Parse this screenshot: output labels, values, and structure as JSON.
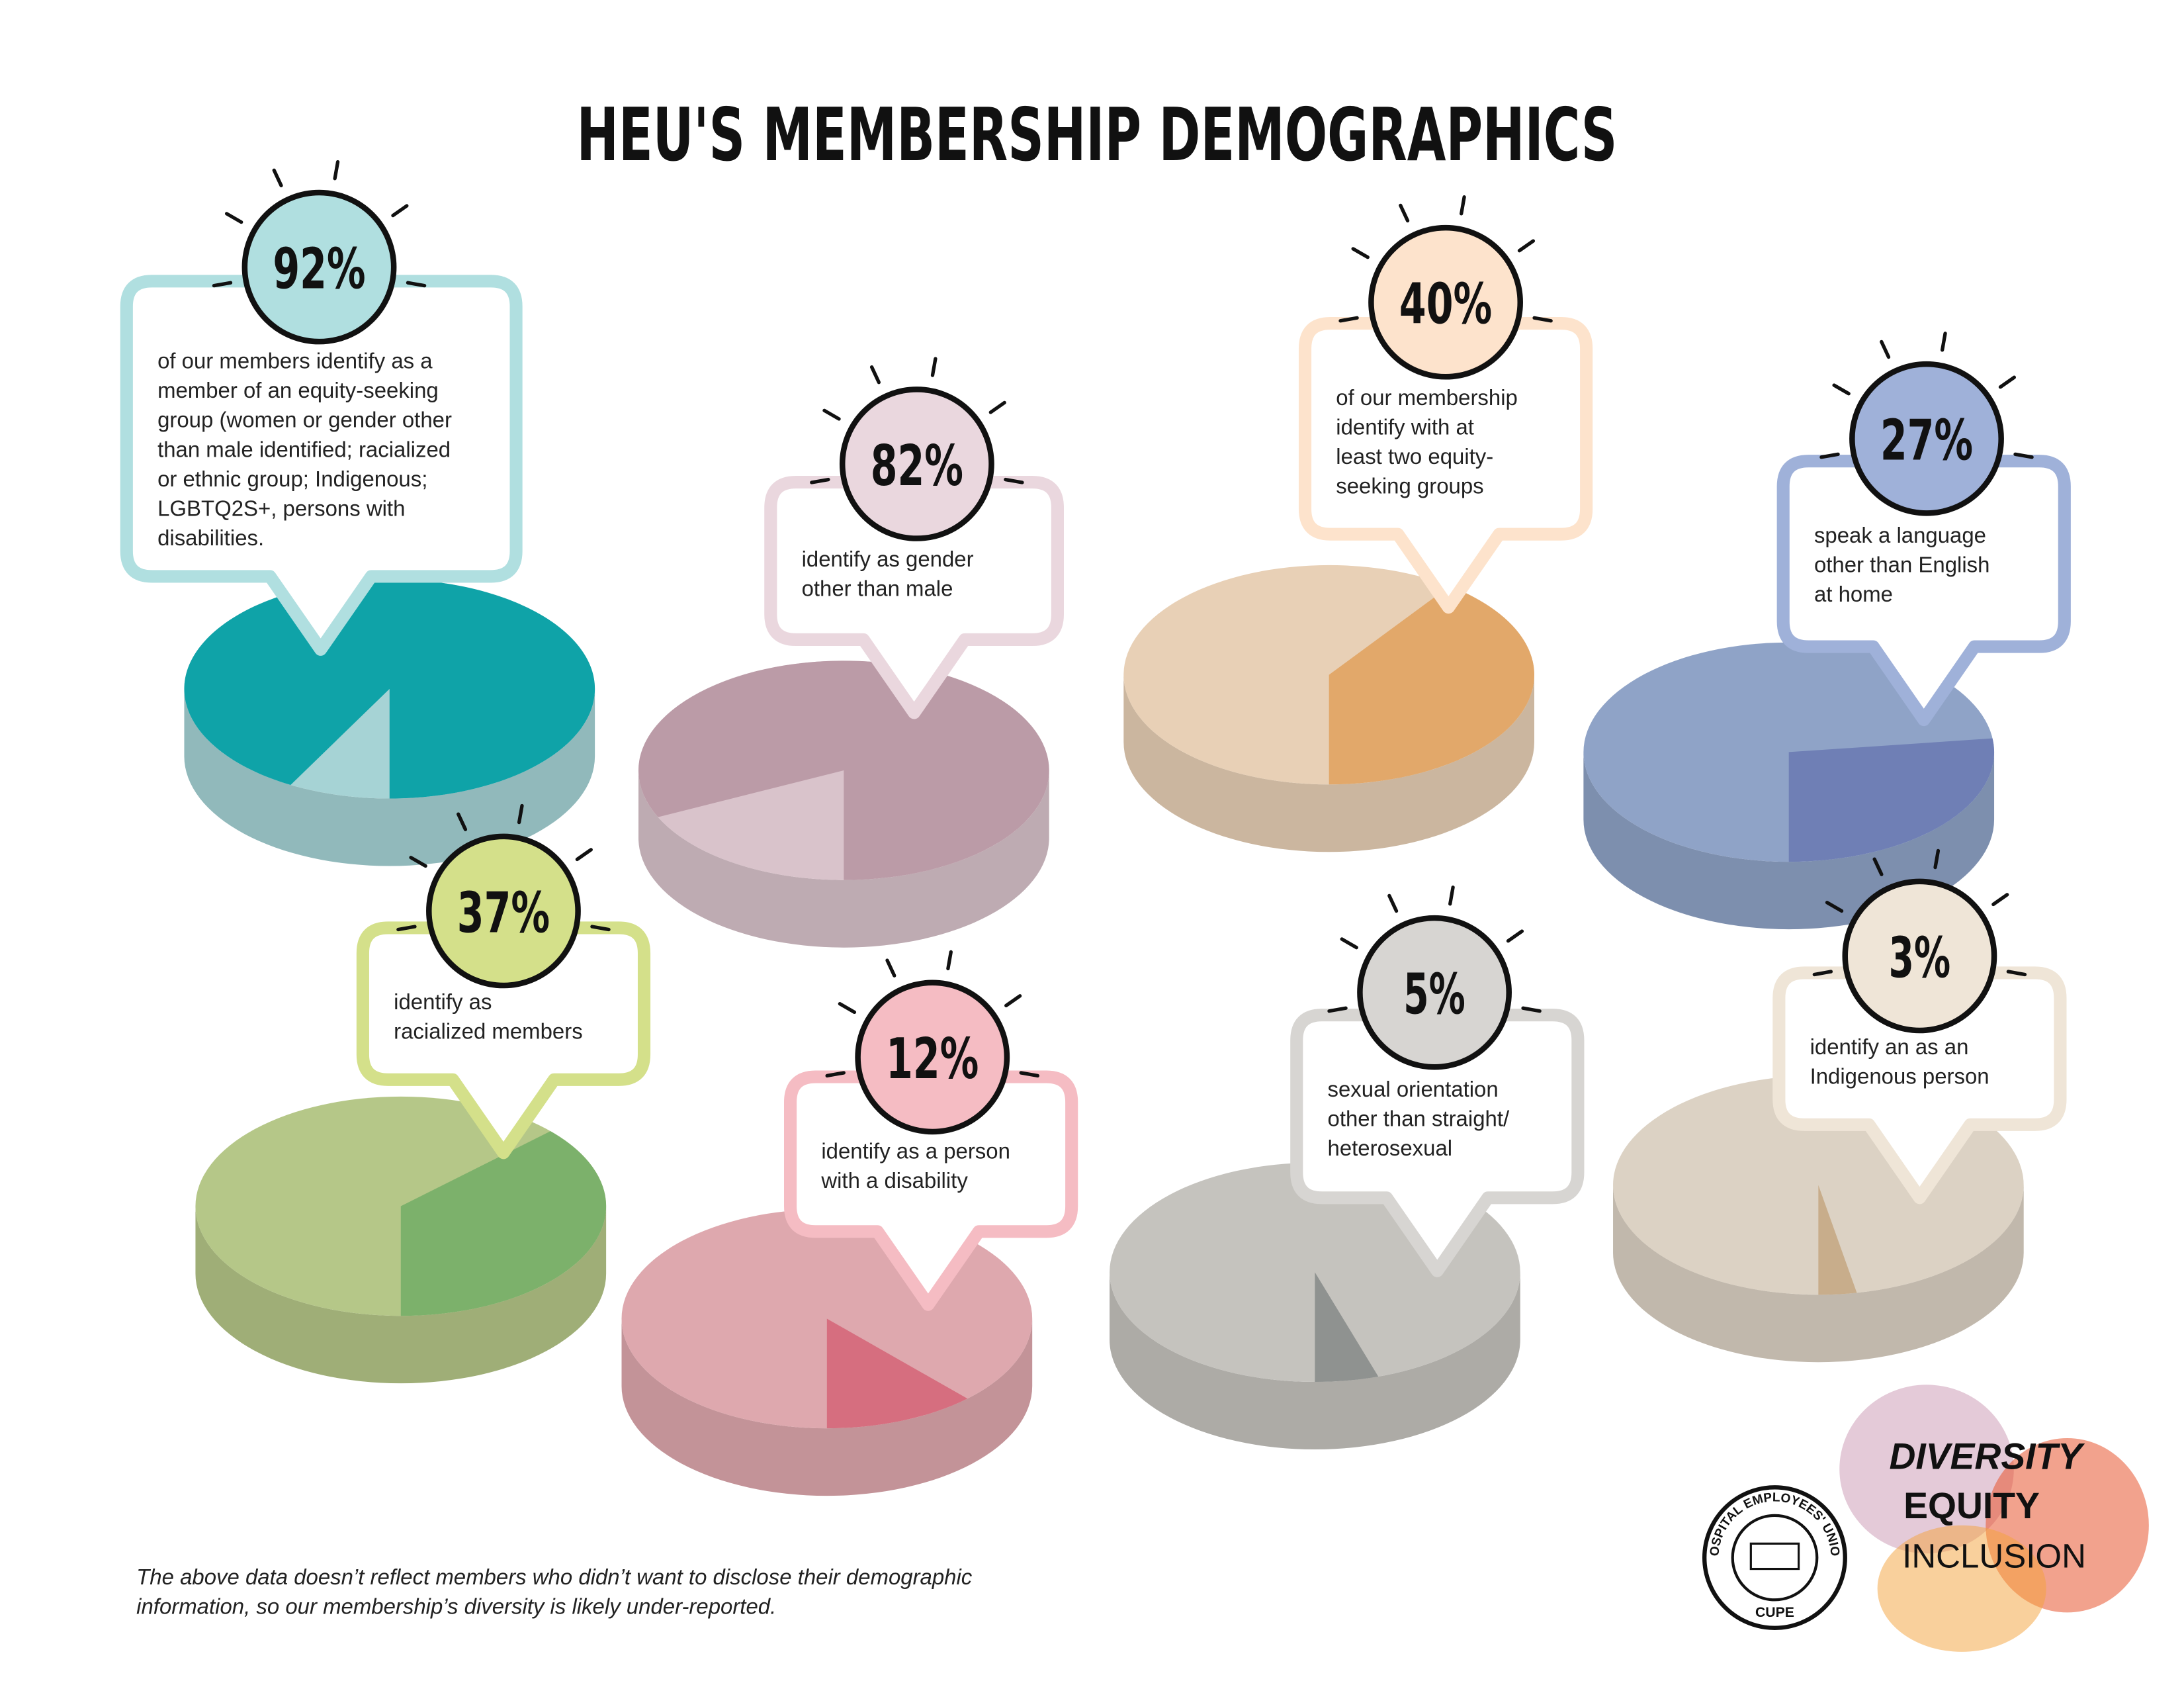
{
  "title": "HEU'S MEMBERSHIP DEMOGRAPHICS",
  "chart_data": [
    {
      "type": "pie",
      "values": [
        92
      ],
      "value_labels": [
        "92%"
      ],
      "text": [
        "of our members identify as a",
        "member of an equity-seeking",
        "group (women or gender other",
        "than male identified; racialized",
        "or ethnic group; Indigenous;",
        "LGBTQ2S+, persons with",
        "disabilities."
      ],
      "color": "#0fa3a8",
      "rest_color": "#a6d3d5",
      "label_color": "#b0dfe0"
    },
    {
      "type": "pie",
      "values": [
        82
      ],
      "value_labels": [
        "82%"
      ],
      "text": [
        "identify as gender",
        "other than male"
      ],
      "color": "#bb9ba7",
      "rest_color": "#d9c3cb",
      "label_color": "#ead7de"
    },
    {
      "type": "pie",
      "values": [
        40
      ],
      "value_labels": [
        "40%"
      ],
      "text": [
        "of our membership",
        "identify with at",
        "least two equity-",
        "seeking groups"
      ],
      "color": "#e2a86a",
      "rest_color": "#e8d0b6",
      "label_color": "#fde3cc"
    },
    {
      "type": "pie",
      "values": [
        27
      ],
      "value_labels": [
        "27%"
      ],
      "text": [
        "speak a language",
        "other than English",
        "at home"
      ],
      "color": "#6f7fb5",
      "rest_color": "#8fa3c7",
      "label_color": "#9fb1d9"
    },
    {
      "type": "pie",
      "values": [
        37
      ],
      "value_labels": [
        "37%"
      ],
      "text": [
        "identify as",
        "racialized members"
      ],
      "color": "#7cb16b",
      "rest_color": "#b5c788",
      "label_color": "#d4e08a"
    },
    {
      "type": "pie",
      "values": [
        12
      ],
      "value_labels": [
        "12%"
      ],
      "text": [
        "identify as a person",
        "with a disability"
      ],
      "color": "#d66e7f",
      "rest_color": "#dea8ae",
      "label_color": "#f5bcc3"
    },
    {
      "type": "pie",
      "values": [
        5
      ],
      "value_labels": [
        "5%"
      ],
      "text": [
        "sexual orientation",
        "other than straight/",
        "heterosexual"
      ],
      "color": "#8f9290",
      "rest_color": "#c5c3be",
      "label_color": "#d7d5d2"
    },
    {
      "type": "pie",
      "values": [
        3
      ],
      "value_labels": [
        "3%"
      ],
      "text": [
        "identify an as an",
        "Indigenous person"
      ],
      "color": "#c8ad8b",
      "rest_color": "#dcd2c4",
      "label_color": "#efe5d7"
    }
  ],
  "footnote": [
    "The above data doesn’t reflect members who didn’t want to disclose their demographic",
    "information, so our membership’s diversity is likely under-reported."
  ],
  "logos": {
    "union": "HOSPITAL EMPLOYEES' UNION",
    "union_short": "CUPE",
    "values": [
      "DIVERSITY",
      "EQUITY",
      "INCLUSION"
    ]
  }
}
